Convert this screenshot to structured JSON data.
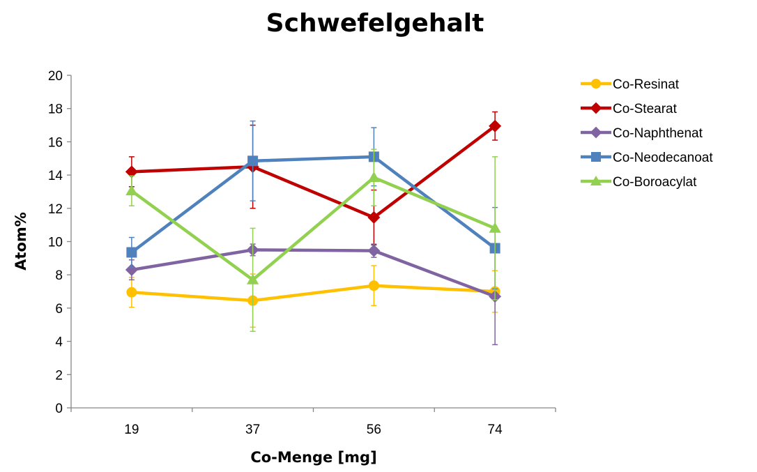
{
  "chart_data": {
    "type": "line",
    "title": "Schwefelgehalt",
    "xlabel": "Co-Menge [mg]",
    "ylabel": "Atom%",
    "categories": [
      "19",
      "37",
      "56",
      "74"
    ],
    "ylim": [
      0,
      20
    ],
    "yticks": [
      0,
      2,
      4,
      6,
      8,
      10,
      12,
      14,
      16,
      18,
      20
    ],
    "grid": false,
    "legend_position": "right",
    "series": [
      {
        "name": "Co-Resinat",
        "color": "#FFC000",
        "marker": "circle",
        "values": [
          6.95,
          6.45,
          7.35,
          7.0
        ],
        "errors": [
          0.9,
          1.6,
          1.2,
          1.25
        ]
      },
      {
        "name": "Co-Stearat",
        "color": "#C00000",
        "marker": "diamond",
        "values": [
          14.2,
          14.5,
          11.45,
          16.95
        ],
        "errors": [
          0.9,
          2.5,
          1.65,
          0.85
        ]
      },
      {
        "name": "Co-Naphthenat",
        "color": "#8064A2",
        "marker": "diamond",
        "values": [
          8.3,
          9.5,
          9.45,
          6.7
        ],
        "errors": [
          0.6,
          0.35,
          0.4,
          2.9
        ]
      },
      {
        "name": "Co-Neodecanoat",
        "color": "#4F81BD",
        "marker": "square",
        "values": [
          9.35,
          14.85,
          15.1,
          9.6
        ],
        "errors": [
          0.9,
          2.4,
          1.75,
          2.45
        ]
      },
      {
        "name": "Co-Boroacylat",
        "color": "#92D050",
        "marker": "triangle",
        "values": [
          13.05,
          7.7,
          13.85,
          10.8
        ],
        "errors": [
          0.9,
          3.1,
          1.7,
          4.3
        ]
      }
    ]
  }
}
